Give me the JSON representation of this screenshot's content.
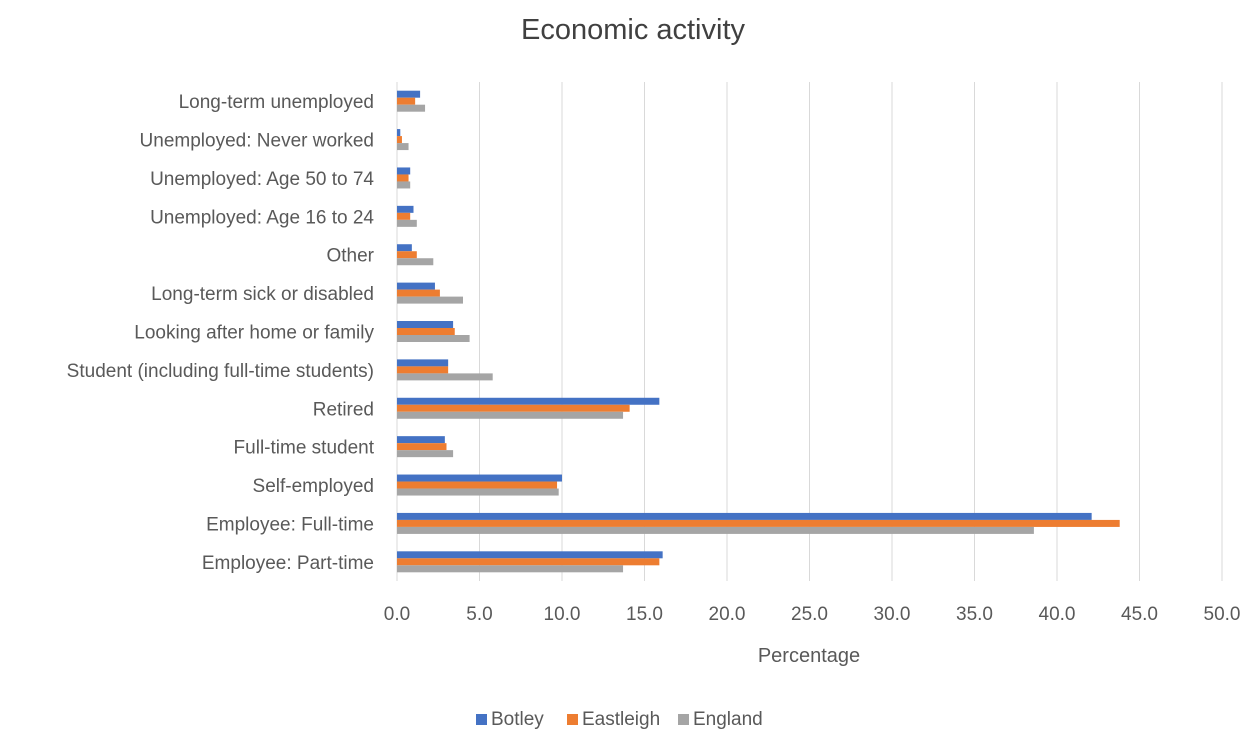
{
  "chart_data": {
    "type": "bar",
    "orientation": "horizontal",
    "title": "Economic activity",
    "xlabel": "Percentage",
    "ylabel": "",
    "xlim": [
      0,
      50
    ],
    "x_ticks": [
      "0.0",
      "5.0",
      "10.0",
      "15.0",
      "20.0",
      "25.0",
      "30.0",
      "35.0",
      "40.0",
      "45.0",
      "50.0"
    ],
    "grid": "vertical",
    "legend_position": "bottom",
    "categories": [
      "Long-term unemployed",
      "Unemployed: Never worked",
      "Unemployed: Age 50 to 74",
      "Unemployed: Age 16 to 24",
      "Other",
      "Long-term sick or disabled",
      "Looking after home or family",
      "Student (including full-time students)",
      "Retired",
      "Full-time student",
      "Self-employed",
      "Employee: Full-time",
      "Employee: Part-time"
    ],
    "series": [
      {
        "name": "Botley",
        "color": "#4472C4",
        "values": [
          1.4,
          0.2,
          0.8,
          1.0,
          0.9,
          2.3,
          3.4,
          3.1,
          15.9,
          2.9,
          10.0,
          42.1,
          16.1
        ]
      },
      {
        "name": "Eastleigh",
        "color": "#ED7D31",
        "values": [
          1.1,
          0.3,
          0.7,
          0.8,
          1.2,
          2.6,
          3.5,
          3.1,
          14.1,
          3.0,
          9.7,
          43.8,
          15.9
        ]
      },
      {
        "name": "England",
        "color": "#A5A5A5",
        "values": [
          1.7,
          0.7,
          0.8,
          1.2,
          2.2,
          4.0,
          4.4,
          5.8,
          13.7,
          3.4,
          9.8,
          38.6,
          13.7
        ]
      }
    ]
  }
}
